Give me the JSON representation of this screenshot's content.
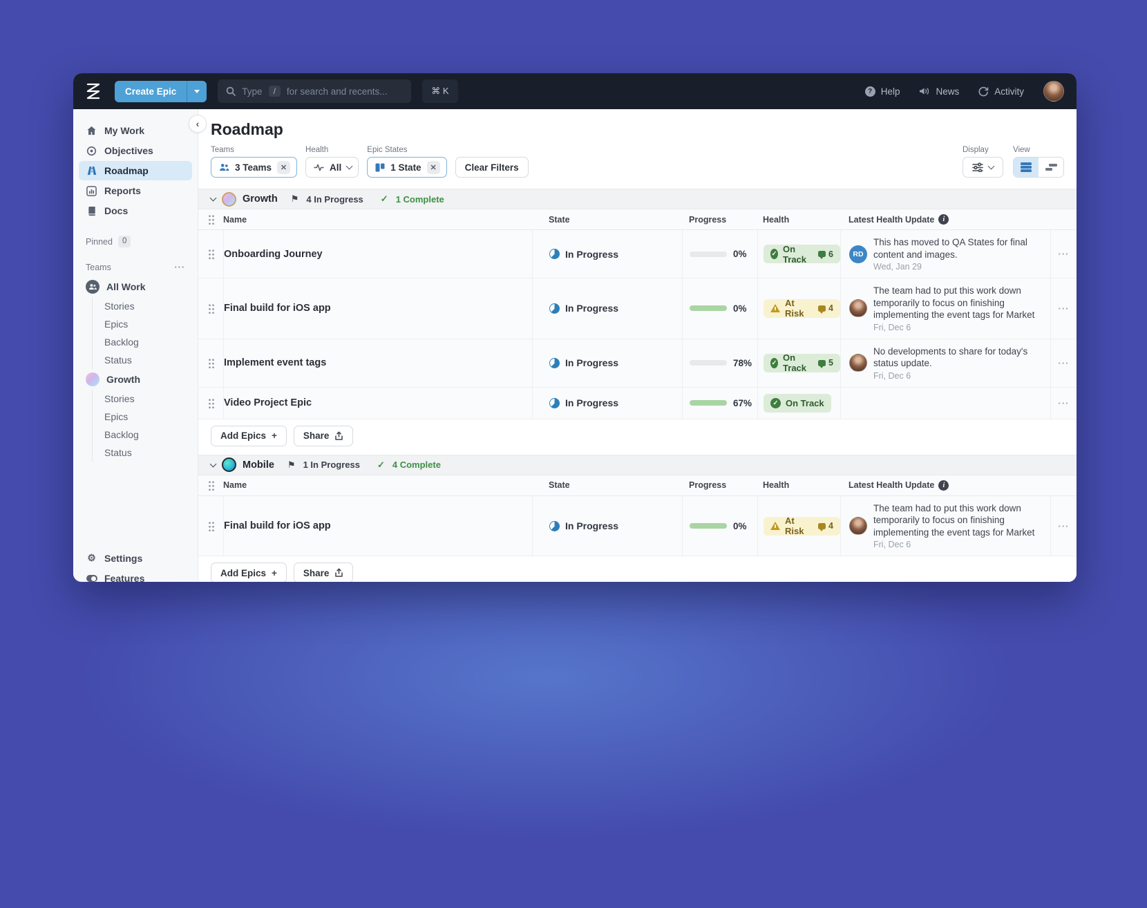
{
  "icons": {
    "check": "✓",
    "flag": "⚑",
    "gear": "⚙",
    "collapse": "‹",
    "ellipsis": "···",
    "plus": "+",
    "question": "?",
    "info": "i",
    "slash": "/"
  },
  "colors": {
    "canvas_purple": "#444bac",
    "topbar_bg": "#191f2a",
    "accent_blue": "#4da1d7",
    "selected_blue": "#d8e9f7",
    "on_track_bg": "#dcecd8",
    "on_track_text": "#2f5c2f",
    "at_risk_bg": "#f9f2cf",
    "at_risk_text": "#77621c",
    "progress_dark": "#579d57",
    "progress_light": "#a9d5a4",
    "complete_green": "#3f8f44"
  },
  "topbar": {
    "create_epic": "Create Epic",
    "search_type": "Type",
    "search_placeholder": "for search and recents...",
    "shortcut": "⌘ K",
    "help": "Help",
    "news": "News",
    "activity": "Activity"
  },
  "sidebar": {
    "nav": [
      {
        "label": "My Work"
      },
      {
        "label": "Objectives"
      },
      {
        "label": "Roadmap"
      },
      {
        "label": "Reports"
      },
      {
        "label": "Docs"
      }
    ],
    "pinned_label": "Pinned",
    "pinned_count": "0",
    "teams_label": "Teams",
    "teams": [
      {
        "name": "All Work",
        "children": [
          "Stories",
          "Epics",
          "Backlog",
          "Status"
        ]
      },
      {
        "name": "Growth",
        "children": [
          "Stories",
          "Epics",
          "Backlog",
          "Status"
        ]
      }
    ],
    "settings_label": "Settings",
    "features_label": "Features"
  },
  "main": {
    "title": "Roadmap",
    "filters": {
      "teams_label": "Teams",
      "teams_value": "3 Teams",
      "health_label": "Health",
      "health_value": "All",
      "states_label": "Epic States",
      "states_value": "1 State",
      "clear": "Clear Filters"
    },
    "display_label": "Display",
    "view_label": "View",
    "columns": {
      "name": "Name",
      "state": "State",
      "progress": "Progress",
      "health": "Health",
      "latest": "Latest Health Update"
    },
    "actions": {
      "add_epics": "Add Epics",
      "share": "Share"
    },
    "groups": [
      {
        "name": "Growth",
        "in_progress": "4 In Progress",
        "complete": "1 Complete",
        "rows": [
          {
            "name": "Onboarding Journey",
            "state": "In Progress",
            "progress": "0%",
            "fill": 33,
            "health": "On Track",
            "comments": "6",
            "avatar_initials": "RD",
            "update": "This has moved to QA States for final content and images.",
            "date": "Wed, Jan 29"
          },
          {
            "name": "Final build for iOS app",
            "state": "In Progress",
            "progress": "0%",
            "fill": 100,
            "health": "At Risk",
            "comments": "4",
            "update": "The team had to put this work down temporarily to focus on finishing implementing the event tags for Market",
            "date": "Fri, Dec 6"
          },
          {
            "name": "Implement event tags",
            "state": "In Progress",
            "progress": "78%",
            "fill": 78,
            "health": "On Track",
            "comments": "5",
            "update": "No developments to share for today's status update.",
            "date": "Fri, Dec 6"
          },
          {
            "name": "Video Project Epic",
            "state": "In Progress",
            "progress": "67%",
            "fill": 67,
            "health": "On Track"
          }
        ]
      },
      {
        "name": "Mobile",
        "in_progress": "1 In Progress",
        "complete": "4 Complete",
        "rows": [
          {
            "name": "Final build for iOS app",
            "state": "In Progress",
            "progress": "0%",
            "fill": 100,
            "health": "At Risk",
            "comments": "4",
            "update": "The team had to put this work down temporarily to focus on finishing implementing the event tags for Market",
            "date": "Fri, Dec 6"
          }
        ]
      }
    ]
  }
}
